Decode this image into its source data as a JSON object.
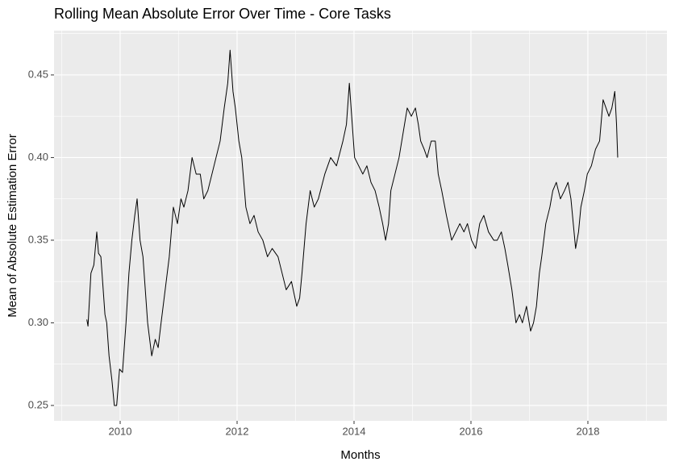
{
  "chart_data": {
    "type": "line",
    "title": "Rolling Mean Absolute Error Over Time - Core Tasks",
    "x_label": "Months",
    "y_label": "Mean of Absolute Estimation Error",
    "x": [
      2009.43,
      2009.45,
      2009.5,
      2009.55,
      2009.6,
      2009.63,
      2009.67,
      2009.71,
      2009.74,
      2009.77,
      2009.81,
      2009.86,
      2009.9,
      2009.94,
      2009.99,
      2010.04,
      2010.1,
      2010.15,
      2010.2,
      2010.25,
      2010.29,
      2010.34,
      2010.39,
      2010.43,
      2010.47,
      2010.54,
      2010.6,
      2010.65,
      2010.7,
      2010.77,
      2010.84,
      2010.91,
      2010.98,
      2011.04,
      2011.09,
      2011.16,
      2011.23,
      2011.3,
      2011.37,
      2011.43,
      2011.5,
      2011.57,
      2011.64,
      2011.71,
      2011.78,
      2011.84,
      2011.88,
      2011.93,
      2011.97,
      2012.03,
      2012.08,
      2012.15,
      2012.22,
      2012.29,
      2012.36,
      2012.44,
      2012.52,
      2012.6,
      2012.7,
      2012.77,
      2012.84,
      2012.93,
      2013.02,
      2013.07,
      2013.11,
      2013.18,
      2013.25,
      2013.32,
      2013.39,
      2013.5,
      2013.6,
      2013.7,
      2013.81,
      2013.87,
      2013.92,
      2013.97,
      2014.01,
      2014.08,
      2014.15,
      2014.22,
      2014.29,
      2014.36,
      2014.43,
      2014.49,
      2014.54,
      2014.59,
      2014.63,
      2014.7,
      2014.77,
      2014.84,
      2014.91,
      2014.98,
      2015.05,
      2015.1,
      2015.14,
      2015.2,
      2015.25,
      2015.32,
      2015.39,
      2015.44,
      2015.5,
      2015.58,
      2015.67,
      2015.74,
      2015.81,
      2015.88,
      2015.94,
      2016.01,
      2016.08,
      2016.15,
      2016.22,
      2016.3,
      2016.39,
      2016.45,
      2016.52,
      2016.58,
      2016.63,
      2016.7,
      2016.77,
      2016.83,
      2016.88,
      2016.95,
      2017.02,
      2017.07,
      2017.12,
      2017.17,
      2017.21,
      2017.28,
      2017.35,
      2017.4,
      2017.46,
      2017.53,
      2017.6,
      2017.66,
      2017.71,
      2017.75,
      2017.79,
      2017.84,
      2017.88,
      2017.94,
      2017.99,
      2018.06,
      2018.13,
      2018.2,
      2018.26,
      2018.31,
      2018.36,
      2018.41,
      2018.46,
      2018.49,
      2018.51
    ],
    "series": [
      {
        "color": "#000000",
        "values": [
          0.302,
          0.298,
          0.33,
          0.335,
          0.355,
          0.342,
          0.34,
          0.32,
          0.305,
          0.3,
          0.28,
          0.265,
          0.25,
          0.25,
          0.272,
          0.27,
          0.3,
          0.33,
          0.35,
          0.365,
          0.375,
          0.35,
          0.34,
          0.32,
          0.3,
          0.28,
          0.29,
          0.285,
          0.3,
          0.32,
          0.34,
          0.37,
          0.36,
          0.375,
          0.37,
          0.38,
          0.4,
          0.39,
          0.39,
          0.375,
          0.38,
          0.39,
          0.4,
          0.41,
          0.43,
          0.445,
          0.465,
          0.44,
          0.43,
          0.41,
          0.4,
          0.37,
          0.36,
          0.365,
          0.355,
          0.35,
          0.34,
          0.345,
          0.34,
          0.33,
          0.32,
          0.325,
          0.31,
          0.315,
          0.33,
          0.36,
          0.38,
          0.37,
          0.375,
          0.39,
          0.4,
          0.395,
          0.41,
          0.42,
          0.445,
          0.42,
          0.4,
          0.395,
          0.39,
          0.395,
          0.385,
          0.38,
          0.37,
          0.36,
          0.35,
          0.36,
          0.38,
          0.39,
          0.4,
          0.415,
          0.43,
          0.425,
          0.43,
          0.42,
          0.41,
          0.405,
          0.4,
          0.41,
          0.41,
          0.39,
          0.38,
          0.365,
          0.35,
          0.355,
          0.36,
          0.355,
          0.36,
          0.35,
          0.345,
          0.36,
          0.365,
          0.355,
          0.35,
          0.35,
          0.355,
          0.345,
          0.335,
          0.32,
          0.3,
          0.305,
          0.3,
          0.31,
          0.295,
          0.3,
          0.31,
          0.33,
          0.34,
          0.36,
          0.37,
          0.38,
          0.385,
          0.375,
          0.38,
          0.385,
          0.375,
          0.36,
          0.345,
          0.355,
          0.37,
          0.38,
          0.39,
          0.395,
          0.405,
          0.41,
          0.435,
          0.43,
          0.425,
          0.43,
          0.44,
          0.42,
          0.4
        ]
      }
    ],
    "xlim": [
      2008.869,
      2019.352
    ],
    "xticks": [
      2010,
      2012,
      2014,
      2016,
      2018
    ],
    "ylim": [
      0.2407,
      0.4768
    ],
    "yticks": [
      0.25,
      {
        "value": 0.3,
        "label": "0.30"
      },
      0.35,
      {
        "value": 0.4,
        "label": "0.40"
      },
      0.45
    ],
    "grid": true
  }
}
